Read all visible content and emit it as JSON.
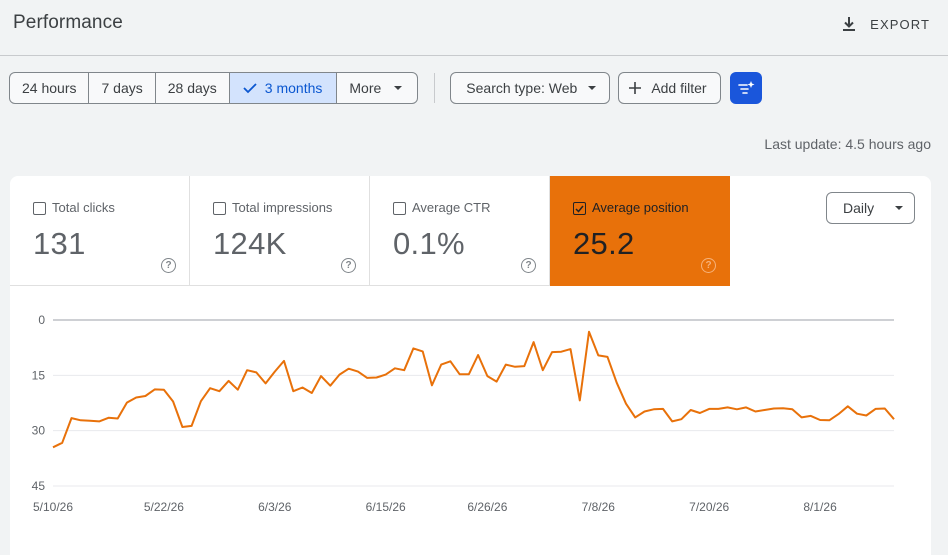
{
  "header": {
    "title": "Performance",
    "export_label": "EXPORT",
    "export_icon": "download-icon"
  },
  "toolbar": {
    "ranges": [
      {
        "label": "24 hours",
        "selected": false
      },
      {
        "label": "7 days",
        "selected": false
      },
      {
        "label": "28 days",
        "selected": false
      },
      {
        "label": "3 months",
        "selected": true
      },
      {
        "label": "More",
        "selected": false
      }
    ],
    "search_type_label": "Search type: Web",
    "add_filter_label": "Add filter",
    "ai_button_icon": "sparkle-filter-icon"
  },
  "last_update": "Last update: 4.5 hours ago",
  "metrics": [
    {
      "label": "Total clicks",
      "value": "131",
      "checked": false
    },
    {
      "label": "Total impressions",
      "value": "124K",
      "checked": false
    },
    {
      "label": "Average CTR",
      "value": "0.1%",
      "checked": false
    },
    {
      "label": "Average position",
      "value": "25.2",
      "checked": true
    }
  ],
  "granularity": "Daily",
  "colors": {
    "accent": "#e8710a",
    "selected_range_bg": "#d3e3fd",
    "selected_range_text": "#0b57d0",
    "ai_button": "#1a56db"
  },
  "chart_data": {
    "type": "line",
    "ylim": [
      0,
      45
    ],
    "y_reversed": true,
    "y_ticks": [
      "0",
      "15",
      "30",
      "45"
    ],
    "x_tick_labels": [
      "5/10/26",
      "5/22/26",
      "6/3/26",
      "6/15/26",
      "6/26/26",
      "7/8/26",
      "7/20/26",
      "8/1/26"
    ],
    "x_tick_index": [
      0,
      12,
      24,
      36,
      47,
      59,
      71,
      83
    ],
    "grid": true,
    "series": [
      {
        "color": "#e8710a",
        "values": [
          34.5,
          33.3,
          26.6,
          27.2,
          27.3,
          27.5,
          26.5,
          26.7,
          22.4,
          21.0,
          20.6,
          18.8,
          18.9,
          22.1,
          29.0,
          28.7,
          22.0,
          18.5,
          19.3,
          16.5,
          18.9,
          13.6,
          14.2,
          17.2,
          14.0,
          11.1,
          19.3,
          18.3,
          19.8,
          15.2,
          17.8,
          14.8,
          13.2,
          14.0,
          15.7,
          15.6,
          14.8,
          13.1,
          13.6,
          7.7,
          8.5,
          17.7,
          12.1,
          11.2,
          14.7,
          14.7,
          9.5,
          15.2,
          16.7,
          12.1,
          12.7,
          12.5,
          6.0,
          13.6,
          8.7,
          8.6,
          7.9,
          21.8,
          3.2,
          9.6,
          10.0,
          17.0,
          22.7,
          26.4,
          24.8,
          24.2,
          24.1,
          27.5,
          26.9,
          24.4,
          25.2,
          24.1,
          24.1,
          23.7,
          24.2,
          23.7,
          24.8,
          24.4,
          24.0,
          23.9,
          24.2,
          26.4,
          26.0,
          27.1,
          27.2,
          25.5,
          23.4,
          25.4,
          25.9,
          24.1,
          24.0,
          26.9
        ]
      }
    ]
  }
}
